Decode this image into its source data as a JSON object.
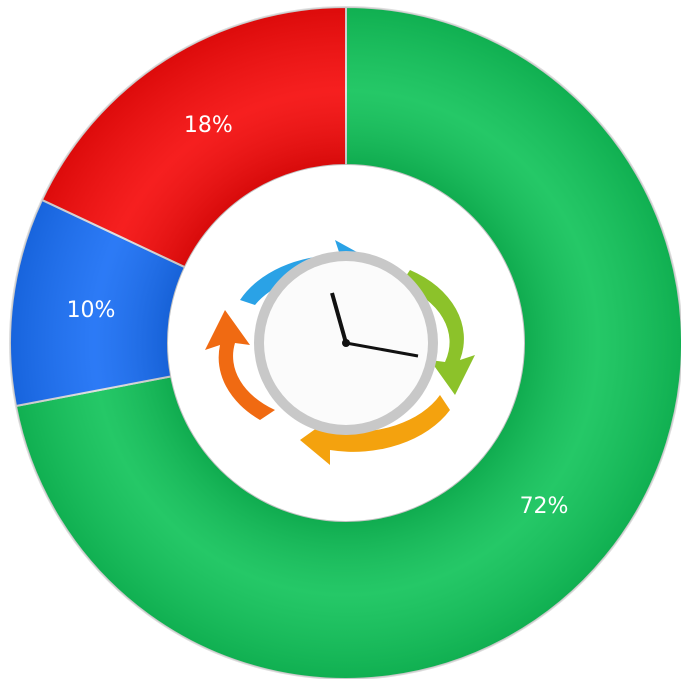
{
  "chart_data": {
    "type": "donut",
    "values": [
      72,
      10,
      18
    ],
    "value_labels": [
      "72%",
      "10%",
      "18%"
    ],
    "colors": [
      "#12c35a",
      "#1a6ff5",
      "#f50c0c"
    ]
  }
}
